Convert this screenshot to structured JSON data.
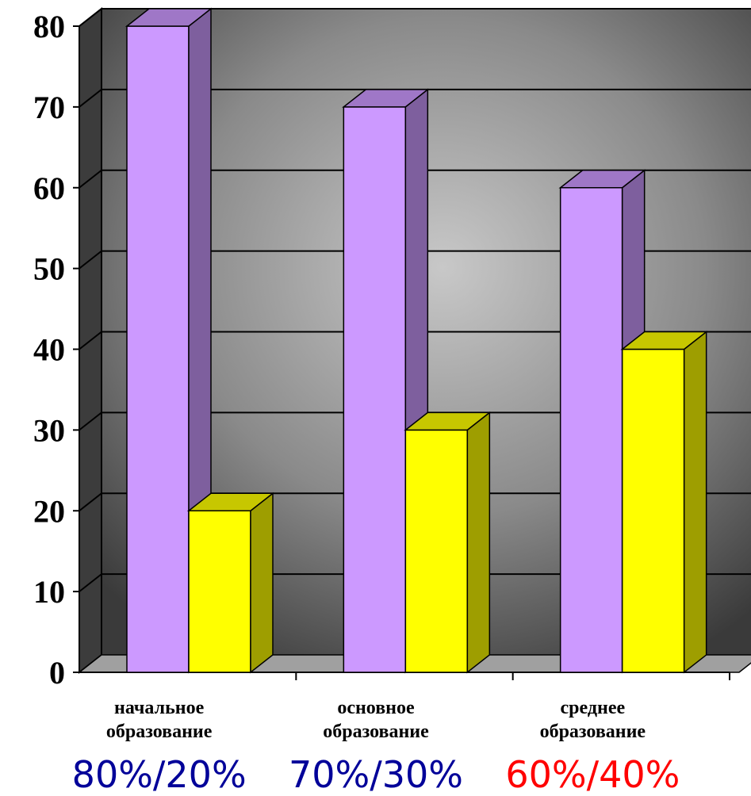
{
  "chart_data": {
    "type": "bar",
    "categories": [
      [
        "начальное",
        "образование"
      ],
      [
        "основное",
        "образование"
      ],
      [
        "среднее",
        "образование"
      ]
    ],
    "series": [
      {
        "values": [
          80,
          70,
          60
        ],
        "color": "#cc99ff"
      },
      {
        "values": [
          20,
          30,
          40
        ],
        "color": "#ffff00"
      }
    ],
    "ylim": [
      0,
      80
    ],
    "yticks": [
      "0",
      "10",
      "20",
      "30",
      "40",
      "50",
      "60",
      "70",
      "80"
    ],
    "grid": true,
    "ratio_labels": [
      {
        "text": "80%/20%",
        "color": "#000099"
      },
      {
        "text": "70%/30%",
        "color": "#000099"
      },
      {
        "text": "60%/40%",
        "color": "#ff0000"
      }
    ]
  }
}
